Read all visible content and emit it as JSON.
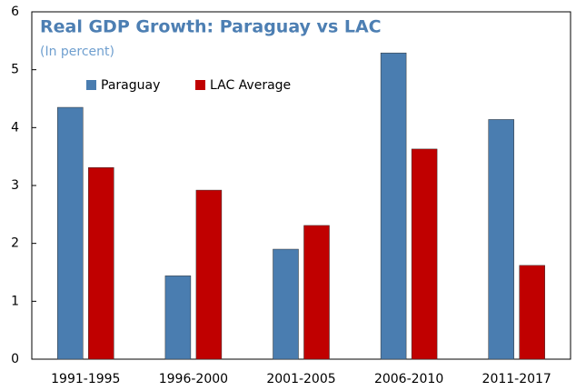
{
  "chart_data": {
    "type": "bar",
    "title": "Real GDP Growth: Paraguay vs LAC",
    "subtitle": "(In percent)",
    "categories": [
      "1991-1995",
      "1996-2000",
      "2001-2005",
      "2006-2010",
      "2011-2017"
    ],
    "series": [
      {
        "name": "Paraguay",
        "color": "#4a7db0",
        "values": [
          4.35,
          1.44,
          1.9,
          5.29,
          4.14
        ]
      },
      {
        "name": "LAC Average",
        "color": "#c00000",
        "values": [
          3.31,
          2.92,
          2.31,
          3.63,
          1.62
        ]
      }
    ],
    "ylim": [
      0,
      6
    ],
    "yticks": [
      0,
      1,
      2,
      3,
      4,
      5,
      6
    ],
    "legend": "top-left"
  }
}
